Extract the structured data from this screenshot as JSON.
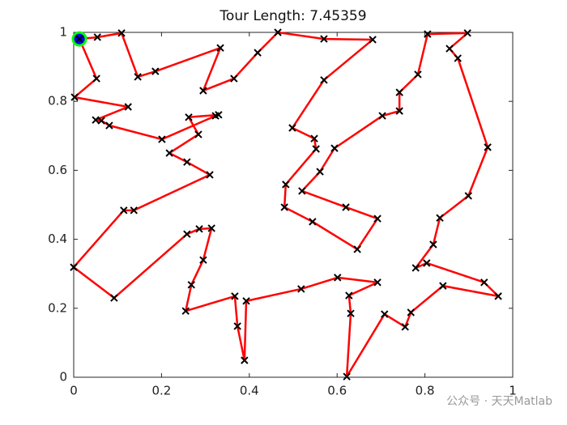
{
  "chart_data": {
    "type": "line",
    "title": "Tour Length: 7.45359",
    "x": [
      0.013,
      0.054,
      0.109,
      0.146,
      0.186,
      0.334,
      0.295,
      0.365,
      0.419,
      0.465,
      0.57,
      0.681,
      0.57,
      0.498,
      0.548,
      0.552,
      0.483,
      0.48,
      0.544,
      0.646,
      0.692,
      0.62,
      0.52,
      0.561,
      0.594,
      0.703,
      0.742,
      0.742,
      0.784,
      0.806,
      0.897,
      0.856,
      0.875,
      0.943,
      0.899,
      0.834,
      0.819,
      0.779,
      0.804,
      0.935,
      0.967,
      0.841,
      0.768,
      0.755,
      0.708,
      0.622,
      0.631,
      0.627,
      0.692,
      0.601,
      0.518,
      0.393,
      0.389,
      0.373,
      0.367,
      0.255,
      0.268,
      0.295,
      0.314,
      0.286,
      0.258,
      0.092,
      0,
      0.114,
      0.137,
      0.31,
      0.258,
      0.218,
      0.284,
      0.262,
      0.33,
      0.323,
      0.201,
      0.081,
      0.063,
      0.05,
      0.124,
      0.002,
      0.052
    ],
    "y": [
      0.981,
      0.986,
      0.998,
      0.871,
      0.887,
      0.955,
      0.831,
      0.866,
      0.941,
      1.0,
      0.981,
      0.979,
      0.862,
      0.723,
      0.692,
      0.662,
      0.559,
      0.493,
      0.451,
      0.371,
      0.46,
      0.493,
      0.54,
      0.596,
      0.664,
      0.758,
      0.772,
      0.826,
      0.878,
      0.995,
      0.998,
      0.953,
      0.925,
      0.667,
      0.526,
      0.462,
      0.385,
      0.317,
      0.331,
      0.275,
      0.235,
      0.265,
      0.188,
      0.146,
      0.183,
      0.002,
      0.185,
      0.237,
      0.275,
      0.289,
      0.256,
      0.221,
      0.049,
      0.148,
      0.235,
      0.192,
      0.268,
      0.34,
      0.432,
      0.43,
      0.415,
      0.23,
      0.319,
      0.484,
      0.484,
      0.587,
      0.624,
      0.65,
      0.704,
      0.754,
      0.761,
      0.758,
      0.69,
      0.73,
      0.744,
      0.746,
      0.784,
      0.812,
      0.866
    ],
    "closed": true,
    "color": "#ff0000",
    "marker_color": "#000000",
    "start_color": "#0000ff",
    "start_edge_color": "#00ff00",
    "xlim": [
      0,
      1
    ],
    "ylim": [
      0,
      1
    ],
    "xticks": [
      0,
      0.2,
      0.4,
      0.6,
      0.8,
      1
    ],
    "yticks": [
      0,
      0.2,
      0.4,
      0.6,
      0.8,
      1
    ],
    "watermark": "公众号 · 天天Matlab"
  }
}
